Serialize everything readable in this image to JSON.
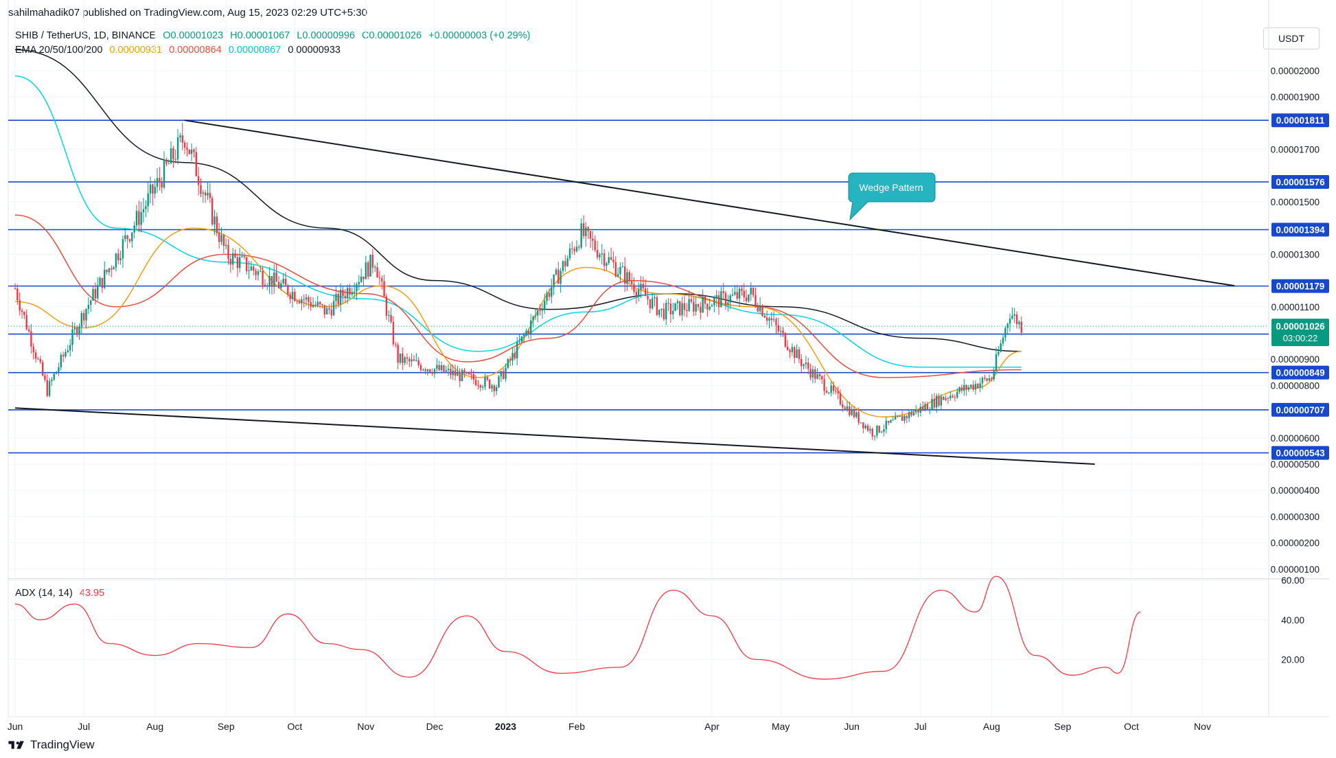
{
  "publisher_line": "sahilmahadik07 published on TradingView.com, Aug 15, 2023 02:29 UTC+5:30",
  "legend": {
    "symbol": "SHIB / TetherUS, 1D, BINANCE",
    "open": "O0.00001023",
    "high": "H0.00001067",
    "low": "L0.00000996",
    "close": "C0.00001026",
    "change": "+0.00000003 (+0.29%)",
    "ema_label": "EMA 20/50/100/200",
    "ema20": "0.00000931",
    "ema50": "0.00000864",
    "ema100": "0.00000867",
    "ema200": "0.00000933",
    "adx_label": "ADX (14, 14)",
    "adx_value": "43.95"
  },
  "currency_button": "USDT",
  "footer_brand": "TradingView",
  "colors": {
    "up": "#089981",
    "down": "#f23645",
    "ema20": "#f39c12",
    "ema50": "#e74c3c",
    "ema100": "#00d4e6",
    "ema200": "#131722",
    "level": "#1848cc",
    "adx": "#f23645"
  },
  "chart_data": [
    {
      "type": "candlestick",
      "title": "SHIB / TetherUS, 1D, BINANCE",
      "x_ticks": [
        "Jun",
        "Jul",
        "Aug",
        "Sep",
        "Oct",
        "Nov",
        "Dec",
        "2023",
        "Feb",
        "Apr",
        "May",
        "Jun",
        "Jul",
        "Aug",
        "Sep",
        "Oct",
        "Nov"
      ],
      "y_ticks": [
        "0.00002000",
        "0.00001900",
        "0.00001700",
        "0.00001500",
        "0.00001300",
        "0.00001100",
        "0.00000900",
        "0.00000800",
        "0.00000600",
        "0.00000500",
        "0.00000400",
        "0.00000300",
        "0.00000200",
        "0.00000100"
      ],
      "ylim": [
        5e-07,
        2.12e-05
      ],
      "horizontal_levels": [
        "0.00001811",
        "0.00001576",
        "0.00001394",
        "0.00001179",
        "0.00000996",
        "0.00000849",
        "0.00000707",
        "0.00000543"
      ],
      "last_price_label": "0.00001026",
      "countdown": "03:00:22",
      "annotation": "Wedge Pattern",
      "wedge_upper": [
        [
          "2022-08-14",
          1.811e-05
        ],
        [
          "2023-11-15",
          1.18e-05
        ]
      ],
      "wedge_lower": [
        [
          "2022-06-01",
          7.14e-06
        ],
        [
          "2023-09-15",
          5e-06
        ]
      ],
      "key_points": [
        {
          "date": "2022-06-01",
          "price": 1.17e-05
        },
        {
          "date": "2022-06-15",
          "price": 7.8e-06
        },
        {
          "date": "2022-07-01",
          "price": 1.08e-05
        },
        {
          "date": "2022-08-14",
          "price": 1.75e-05
        },
        {
          "date": "2022-09-01",
          "price": 1.3e-05
        },
        {
          "date": "2022-10-15",
          "price": 1.08e-05
        },
        {
          "date": "2022-11-05",
          "price": 1.28e-05
        },
        {
          "date": "2022-11-15",
          "price": 9e-06
        },
        {
          "date": "2022-12-28",
          "price": 8e-06
        },
        {
          "date": "2023-02-03",
          "price": 1.38e-05
        },
        {
          "date": "2023-03-10",
          "price": 1.08e-05
        },
        {
          "date": "2023-04-18",
          "price": 1.15e-05
        },
        {
          "date": "2023-05-10",
          "price": 8.9e-06
        },
        {
          "date": "2023-06-10",
          "price": 6.2e-06
        },
        {
          "date": "2023-07-10",
          "price": 7.5e-06
        },
        {
          "date": "2023-08-01",
          "price": 8.3e-06
        },
        {
          "date": "2023-08-09",
          "price": 1.08e-05
        },
        {
          "date": "2023-08-14",
          "price": 1.026e-05
        }
      ],
      "ema": {
        "ema20": [
          [
            "2022-06-01",
            1.12e-05
          ],
          [
            "2022-07-01",
            1.02e-05
          ],
          [
            "2022-08-18",
            1.4e-05
          ],
          [
            "2022-10-15",
            1.1e-05
          ],
          [
            "2022-11-08",
            1.18e-05
          ],
          [
            "2022-12-20",
            8.3e-06
          ],
          [
            "2023-02-05",
            1.25e-05
          ],
          [
            "2023-03-10",
            1.15e-05
          ],
          [
            "2023-04-20",
            1.1e-05
          ],
          [
            "2023-06-15",
            6.8e-06
          ],
          [
            "2023-07-25",
            7.9e-06
          ],
          [
            "2023-08-14",
            9.3e-06
          ]
        ],
        "ema50": [
          [
            "2022-06-01",
            1.45e-05
          ],
          [
            "2022-07-15",
            1.1e-05
          ],
          [
            "2022-09-01",
            1.3e-05
          ],
          [
            "2022-11-01",
            1.15e-05
          ],
          [
            "2022-12-15",
            8.9e-06
          ],
          [
            "2023-01-20",
            9.8e-06
          ],
          [
            "2023-02-25",
            1.2e-05
          ],
          [
            "2023-04-20",
            1.1e-05
          ],
          [
            "2023-06-15",
            8.3e-06
          ],
          [
            "2023-08-14",
            8.6e-06
          ]
        ],
        "ema100": [
          [
            "2022-06-01",
            1.98e-05
          ],
          [
            "2022-07-15",
            1.4e-05
          ],
          [
            "2022-09-01",
            1.27e-05
          ],
          [
            "2022-11-01",
            1.13e-05
          ],
          [
            "2022-12-20",
            9.3e-06
          ],
          [
            "2023-02-05",
            1.08e-05
          ],
          [
            "2023-03-10",
            1.15e-05
          ],
          [
            "2023-05-01",
            1.07e-05
          ],
          [
            "2023-07-01",
            8.7e-06
          ],
          [
            "2023-08-14",
            8.7e-06
          ]
        ],
        "ema200": [
          [
            "2022-06-01",
            2.08e-05
          ],
          [
            "2022-08-14",
            1.65e-05
          ],
          [
            "2022-10-15",
            1.4e-05
          ],
          [
            "2022-12-01",
            1.2e-05
          ],
          [
            "2023-01-20",
            1.09e-05
          ],
          [
            "2023-03-15",
            1.15e-05
          ],
          [
            "2023-05-01",
            1.1e-05
          ],
          [
            "2023-07-01",
            9.8e-06
          ],
          [
            "2023-08-14",
            9.3e-06
          ]
        ]
      }
    },
    {
      "type": "line",
      "title": "ADX (14, 14)",
      "y_ticks": [
        "60.00",
        "40.00",
        "20.00"
      ],
      "ylim": [
        0,
        68
      ],
      "series": [
        {
          "name": "ADX",
          "points": [
            [
              "2022-06-01",
              48
            ],
            [
              "2022-06-12",
              40
            ],
            [
              "2022-06-27",
              48
            ],
            [
              "2022-07-12",
              28
            ],
            [
              "2022-08-01",
              22
            ],
            [
              "2022-08-20",
              28
            ],
            [
              "2022-09-12",
              26
            ],
            [
              "2022-09-28",
              43
            ],
            [
              "2022-10-15",
              28
            ],
            [
              "2022-10-30",
              25
            ],
            [
              "2022-11-20",
              11
            ],
            [
              "2022-12-15",
              42
            ],
            [
              "2023-01-01",
              24
            ],
            [
              "2023-01-25",
              13
            ],
            [
              "2023-02-20",
              16
            ],
            [
              "2023-03-15",
              55
            ],
            [
              "2023-04-01",
              42
            ],
            [
              "2023-04-20",
              20
            ],
            [
              "2023-05-20",
              10
            ],
            [
              "2023-06-15",
              14
            ],
            [
              "2023-07-10",
              55
            ],
            [
              "2023-07-25",
              44
            ],
            [
              "2023-08-03",
              62
            ],
            [
              "2023-08-20",
              22
            ],
            [
              "2023-09-05",
              12
            ],
            [
              "2023-09-20",
              16
            ],
            [
              "2023-09-25",
              13
            ],
            [
              "2023-10-05",
              44
            ]
          ]
        }
      ]
    }
  ]
}
